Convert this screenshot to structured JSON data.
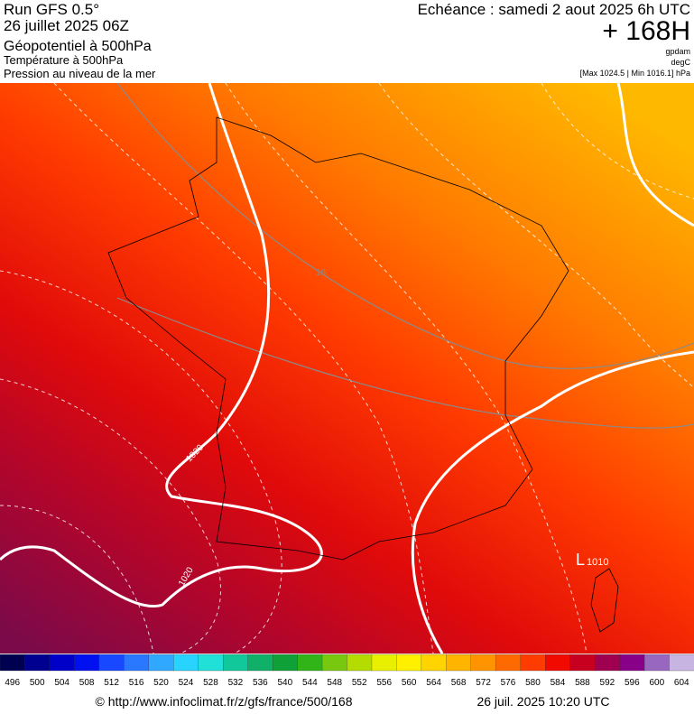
{
  "header": {
    "run": "Run GFS 0.5°",
    "run_date": "26 juillet 2025 06Z",
    "field_1": "Géopotentiel à 500hPa",
    "field_2": "Température à 500hPa",
    "field_3": "Pression au niveau de la mer",
    "valid": "Echéance : samedi 2 aout 2025 6h UTC",
    "lead": "+ 168H",
    "unit_1": "gpdam",
    "unit_2": "degC",
    "range": "[Max 1024.5 | Min 1016.1] hPa"
  },
  "map": {
    "labels": [
      "1020",
      "1020",
      "16",
      "L",
      "1010"
    ]
  },
  "colorbar": {
    "labels": [
      496,
      500,
      504,
      508,
      512,
      516,
      520,
      524,
      528,
      532,
      536,
      540,
      544,
      548,
      552,
      556,
      560,
      564,
      568,
      572,
      576,
      580,
      584,
      588,
      592,
      596,
      600,
      604
    ],
    "colors": [
      "#000050",
      "#000090",
      "#0000c8",
      "#0010f0",
      "#1848ff",
      "#2a78ff",
      "#30a8ff",
      "#28d4ff",
      "#20e0d8",
      "#10c89a",
      "#10b068",
      "#10a038",
      "#30b418",
      "#78c810",
      "#b4dc00",
      "#e8f000",
      "#fff000",
      "#ffd400",
      "#ffb400",
      "#ff9400",
      "#ff6a00",
      "#ff3c00",
      "#f00a00",
      "#c80020",
      "#a00050",
      "#880088",
      "#9868c0",
      "#c8b4e0"
    ]
  },
  "footer": {
    "url": "© http://www.infoclimat.fr/z/gfs/france/500/168",
    "timestamp": "26 juil. 2025 10:20 UTC"
  }
}
